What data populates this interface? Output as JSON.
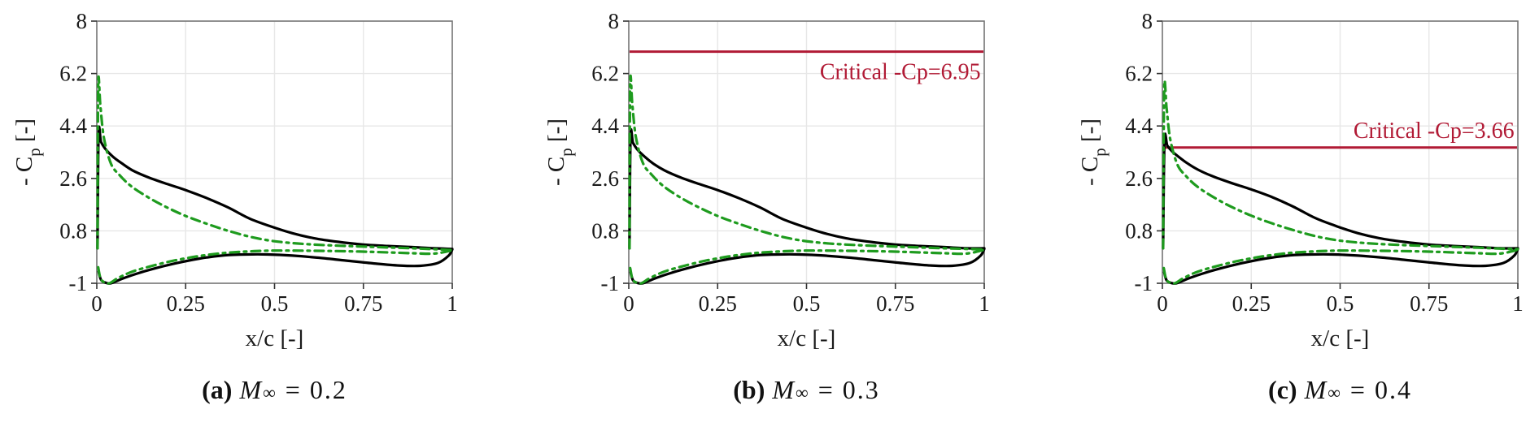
{
  "figure": {
    "background": "#ffffff",
    "axis": {
      "xlabel": "x/c [-]",
      "ylabel": {
        "pre": "- C",
        "sub": "p",
        "post": " [-]"
      },
      "xlim": [
        0,
        1
      ],
      "ylim": [
        -1,
        8
      ],
      "xticks": {
        "values": [
          0,
          0.25,
          0.5,
          0.75,
          1
        ],
        "labels": [
          "0",
          "0.25",
          "0.5",
          "0.75",
          "1"
        ]
      },
      "yticks": {
        "values": [
          -1,
          0.8,
          2.6,
          4.4,
          6.2,
          8
        ],
        "labels": [
          "-1",
          "0.8",
          "2.6",
          "4.4",
          "6.2",
          "8"
        ]
      },
      "grid": true,
      "legend": "none"
    },
    "colors": {
      "solid_curve": "#000000",
      "dashdot_curve": "#1e9b1e",
      "critical": "#b11a35",
      "grid": "#e7e7e7",
      "box": "#777777",
      "tick": "#333333",
      "text": "#1a1a1a"
    }
  },
  "chart_data": [
    {
      "type": "line",
      "caption": {
        "prefix": "(a)",
        "variable": "M",
        "subscript": "∞",
        "rest": "= 0.2"
      },
      "critical_line": null,
      "series": [
        {
          "name": "upper-surface-solid-black",
          "color": "#000000",
          "style": "solid",
          "x": [
            0.002,
            0.005,
            0.012,
            0.025,
            0.045,
            0.07,
            0.1,
            0.14,
            0.19,
            0.25,
            0.31,
            0.37,
            0.43,
            0.49,
            0.55,
            0.61,
            0.68,
            0.75,
            0.82,
            0.89,
            0.95,
            1.0
          ],
          "y": [
            0.2,
            4.15,
            3.85,
            3.6,
            3.35,
            3.12,
            2.88,
            2.66,
            2.44,
            2.2,
            1.92,
            1.6,
            1.22,
            0.95,
            0.72,
            0.55,
            0.42,
            0.33,
            0.28,
            0.24,
            0.2,
            0.18
          ]
        },
        {
          "name": "lower-surface-solid-black",
          "color": "#000000",
          "style": "solid",
          "x": [
            0.005,
            0.012,
            0.025,
            0.04,
            0.07,
            0.11,
            0.16,
            0.22,
            0.29,
            0.36,
            0.42,
            0.48,
            0.55,
            0.62,
            0.7,
            0.78,
            0.85,
            0.91,
            0.96,
            0.99,
            1.0
          ],
          "y": [
            -0.6,
            -0.88,
            -0.98,
            -1.0,
            -0.85,
            -0.68,
            -0.5,
            -0.32,
            -0.15,
            -0.04,
            -0.01,
            -0.01,
            -0.05,
            -0.12,
            -0.22,
            -0.32,
            -0.39,
            -0.4,
            -0.3,
            -0.05,
            0.16
          ]
        },
        {
          "name": "upper-surface-dashdot-green",
          "color": "#1e9b1e",
          "style": "dashdot",
          "x": [
            0.002,
            0.004,
            0.01,
            0.02,
            0.04,
            0.065,
            0.095,
            0.135,
            0.185,
            0.25,
            0.31,
            0.37,
            0.43,
            0.49,
            0.55,
            0.61,
            0.68,
            0.75,
            0.82,
            0.89,
            0.95,
            1.0
          ],
          "y": [
            0.2,
            5.82,
            5.1,
            4.0,
            3.1,
            2.7,
            2.35,
            2.02,
            1.68,
            1.31,
            1.04,
            0.8,
            0.6,
            0.46,
            0.38,
            0.33,
            0.29,
            0.26,
            0.23,
            0.2,
            0.17,
            0.14
          ]
        },
        {
          "name": "lower-surface-dashdot-green",
          "color": "#1e9b1e",
          "style": "dashdot",
          "x": [
            0.004,
            0.01,
            0.02,
            0.035,
            0.06,
            0.1,
            0.15,
            0.21,
            0.28,
            0.35,
            0.42,
            0.49,
            0.57,
            0.65,
            0.74,
            0.82,
            0.89,
            0.95,
            1.0
          ],
          "y": [
            -0.45,
            -0.82,
            -0.96,
            -1.0,
            -0.82,
            -0.6,
            -0.42,
            -0.24,
            -0.08,
            0.03,
            0.09,
            0.12,
            0.12,
            0.11,
            0.09,
            0.06,
            0.03,
            0.02,
            0.13
          ]
        }
      ]
    },
    {
      "type": "line",
      "caption": {
        "prefix": "(b)",
        "variable": "M",
        "subscript": "∞",
        "rest": "= 0.3"
      },
      "critical_line": {
        "value": 6.95,
        "label": "Critical -Cp=6.95"
      },
      "series": [
        {
          "name": "upper-surface-solid-black",
          "color": "#000000",
          "style": "solid",
          "x": [
            0.002,
            0.005,
            0.012,
            0.025,
            0.045,
            0.07,
            0.1,
            0.14,
            0.19,
            0.25,
            0.31,
            0.37,
            0.43,
            0.49,
            0.55,
            0.61,
            0.68,
            0.75,
            0.82,
            0.89,
            0.95,
            1.0
          ],
          "y": [
            0.2,
            4.05,
            3.82,
            3.58,
            3.34,
            3.1,
            2.88,
            2.66,
            2.44,
            2.2,
            1.92,
            1.6,
            1.22,
            0.95,
            0.72,
            0.55,
            0.42,
            0.33,
            0.28,
            0.24,
            0.2,
            0.2
          ]
        },
        {
          "name": "lower-surface-solid-black",
          "color": "#000000",
          "style": "solid",
          "x": [
            0.005,
            0.012,
            0.025,
            0.04,
            0.07,
            0.11,
            0.16,
            0.22,
            0.29,
            0.36,
            0.42,
            0.48,
            0.55,
            0.62,
            0.7,
            0.78,
            0.85,
            0.91,
            0.96,
            0.99,
            1.0
          ],
          "y": [
            -0.62,
            -0.9,
            -0.99,
            -1.0,
            -0.85,
            -0.68,
            -0.5,
            -0.32,
            -0.15,
            -0.04,
            -0.01,
            -0.01,
            -0.05,
            -0.12,
            -0.22,
            -0.32,
            -0.39,
            -0.4,
            -0.3,
            -0.05,
            0.18
          ]
        },
        {
          "name": "upper-surface-dashdot-green",
          "color": "#1e9b1e",
          "style": "dashdot",
          "x": [
            0.002,
            0.004,
            0.01,
            0.02,
            0.04,
            0.065,
            0.095,
            0.135,
            0.185,
            0.25,
            0.31,
            0.37,
            0.43,
            0.49,
            0.55,
            0.61,
            0.68,
            0.75,
            0.82,
            0.89,
            0.95,
            1.0
          ],
          "y": [
            0.2,
            5.85,
            5.12,
            4.02,
            3.12,
            2.72,
            2.36,
            2.02,
            1.68,
            1.31,
            1.04,
            0.8,
            0.6,
            0.46,
            0.38,
            0.33,
            0.29,
            0.26,
            0.23,
            0.2,
            0.18,
            0.16
          ]
        },
        {
          "name": "lower-surface-dashdot-green",
          "color": "#1e9b1e",
          "style": "dashdot",
          "x": [
            0.004,
            0.01,
            0.02,
            0.035,
            0.06,
            0.1,
            0.15,
            0.21,
            0.28,
            0.35,
            0.42,
            0.49,
            0.57,
            0.65,
            0.74,
            0.82,
            0.89,
            0.95,
            1.0
          ],
          "y": [
            -0.48,
            -0.84,
            -0.97,
            -1.0,
            -0.82,
            -0.6,
            -0.42,
            -0.24,
            -0.08,
            0.03,
            0.09,
            0.12,
            0.12,
            0.11,
            0.09,
            0.06,
            0.03,
            0.02,
            0.15
          ]
        }
      ]
    },
    {
      "type": "line",
      "caption": {
        "prefix": "(c)",
        "variable": "M",
        "subscript": "∞",
        "rest": "= 0.4"
      },
      "critical_line": {
        "value": 3.66,
        "label": "Critical -Cp=3.66"
      },
      "series": [
        {
          "name": "upper-surface-solid-black",
          "color": "#000000",
          "style": "solid",
          "x": [
            0.002,
            0.006,
            0.014,
            0.028,
            0.048,
            0.07,
            0.1,
            0.14,
            0.19,
            0.25,
            0.31,
            0.37,
            0.43,
            0.49,
            0.55,
            0.61,
            0.68,
            0.75,
            0.82,
            0.89,
            0.95,
            1.0
          ],
          "y": [
            0.2,
            3.9,
            3.72,
            3.52,
            3.32,
            3.12,
            2.9,
            2.68,
            2.46,
            2.22,
            1.95,
            1.62,
            1.24,
            0.96,
            0.72,
            0.55,
            0.42,
            0.33,
            0.28,
            0.24,
            0.2,
            0.2
          ]
        },
        {
          "name": "lower-surface-solid-black",
          "color": "#000000",
          "style": "solid",
          "x": [
            0.005,
            0.012,
            0.025,
            0.04,
            0.07,
            0.11,
            0.16,
            0.22,
            0.29,
            0.36,
            0.42,
            0.48,
            0.55,
            0.62,
            0.7,
            0.78,
            0.85,
            0.91,
            0.96,
            0.99,
            1.0
          ],
          "y": [
            -0.62,
            -0.9,
            -0.99,
            -1.0,
            -0.85,
            -0.68,
            -0.5,
            -0.32,
            -0.15,
            -0.04,
            -0.01,
            -0.01,
            -0.05,
            -0.12,
            -0.22,
            -0.32,
            -0.39,
            -0.4,
            -0.3,
            -0.05,
            0.18
          ]
        },
        {
          "name": "upper-surface-dashdot-green",
          "color": "#1e9b1e",
          "style": "dashdot",
          "x": [
            0.002,
            0.005,
            0.012,
            0.022,
            0.042,
            0.065,
            0.095,
            0.135,
            0.185,
            0.25,
            0.31,
            0.37,
            0.43,
            0.49,
            0.55,
            0.61,
            0.68,
            0.75,
            0.82,
            0.89,
            0.95,
            1.0
          ],
          "y": [
            0.2,
            5.68,
            5.0,
            3.95,
            3.08,
            2.7,
            2.35,
            2.02,
            1.68,
            1.32,
            1.05,
            0.82,
            0.62,
            0.48,
            0.4,
            0.35,
            0.31,
            0.28,
            0.25,
            0.22,
            0.19,
            0.17
          ]
        },
        {
          "name": "lower-surface-dashdot-green",
          "color": "#1e9b1e",
          "style": "dashdot",
          "x": [
            0.004,
            0.01,
            0.02,
            0.035,
            0.06,
            0.1,
            0.15,
            0.21,
            0.28,
            0.35,
            0.42,
            0.49,
            0.57,
            0.65,
            0.74,
            0.82,
            0.89,
            0.95,
            1.0
          ],
          "y": [
            -0.48,
            -0.84,
            -0.97,
            -1.0,
            -0.82,
            -0.6,
            -0.42,
            -0.24,
            -0.08,
            0.03,
            0.09,
            0.12,
            0.12,
            0.11,
            0.09,
            0.06,
            0.03,
            0.02,
            0.15
          ]
        }
      ]
    }
  ]
}
